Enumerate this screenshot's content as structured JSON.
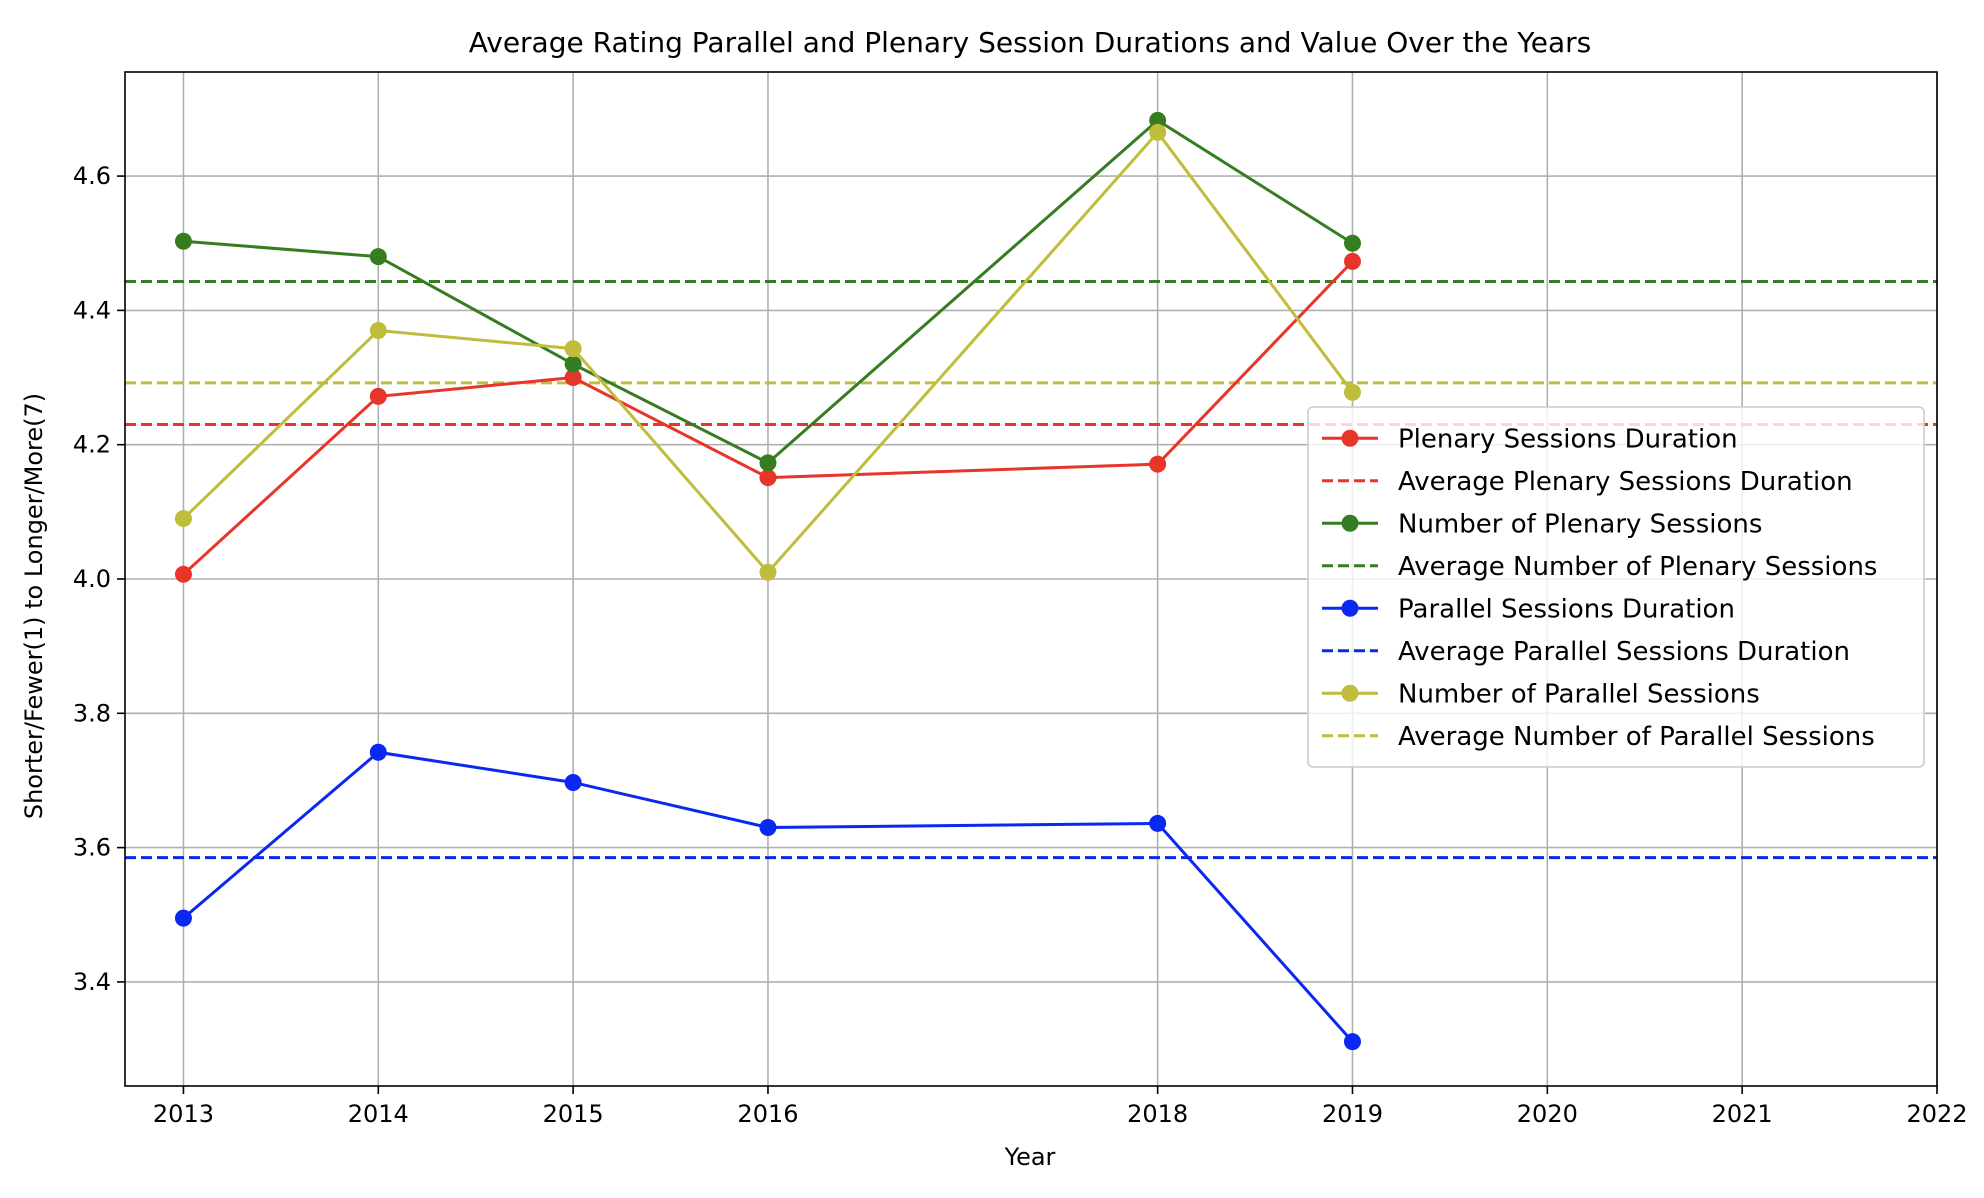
{
  "chart_data": {
    "type": "line",
    "title": "Average Rating Parallel and Plenary Session Durations and Value Over the Years",
    "xlabel": "Year",
    "ylabel": "Shorter/Fewer(1) to Longer/More(7)",
    "x_ticks": [
      2013,
      2014,
      2015,
      2016,
      2018,
      2019,
      2020,
      2021,
      2022
    ],
    "y_ticks": [
      3.4,
      3.6,
      3.8,
      4.0,
      4.2,
      4.4,
      4.6
    ],
    "y_tick_labels": [
      "3.4",
      "3.6",
      "3.8",
      "4.0",
      "4.2",
      "4.4",
      "4.6"
    ],
    "xlim": [
      2012.7,
      2022
    ],
    "ylim": [
      3.245,
      4.755
    ],
    "grid": true,
    "legend_position": "center-right",
    "x": [
      2013,
      2014,
      2015,
      2016,
      2018,
      2019
    ],
    "series": [
      {
        "name": "Plenary Sessions Duration",
        "kind": "line",
        "color": "#e8352a",
        "values": [
          4.007,
          4.272,
          4.3,
          4.151,
          4.171,
          4.473
        ]
      },
      {
        "name": "Average Plenary Sessions Duration",
        "kind": "hline",
        "color": "#e8352a",
        "value": 4.23
      },
      {
        "name": "Number of Plenary Sessions",
        "kind": "line",
        "color": "#367d22",
        "values": [
          4.503,
          4.48,
          4.32,
          4.173,
          4.683,
          4.5
        ]
      },
      {
        "name": "Average Number of Plenary Sessions",
        "kind": "hline",
        "color": "#367d22",
        "value": 4.443
      },
      {
        "name": "Parallel Sessions Duration",
        "kind": "line",
        "color": "#0a28f0",
        "values": [
          3.495,
          3.742,
          3.697,
          3.63,
          3.636,
          3.311
        ]
      },
      {
        "name": "Average Parallel Sessions Duration",
        "kind": "hline",
        "color": "#0a28f0",
        "value": 3.585
      },
      {
        "name": "Number of Parallel Sessions",
        "kind": "line",
        "color": "#c0bc3c",
        "values": [
          4.09,
          4.37,
          4.343,
          4.01,
          4.665,
          4.278
        ]
      },
      {
        "name": "Average Number of Parallel Sessions",
        "kind": "hline",
        "color": "#c0bc3c",
        "value": 4.292
      }
    ]
  }
}
